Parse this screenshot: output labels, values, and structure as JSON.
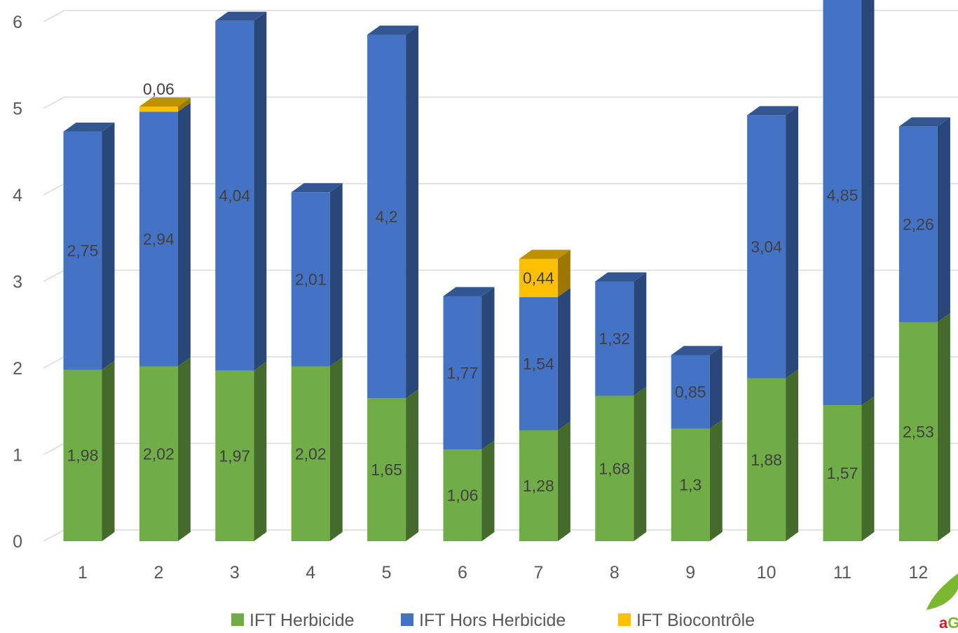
{
  "chart_data": {
    "type": "bar",
    "stacked": true,
    "three_d": true,
    "categories": [
      "1",
      "2",
      "3",
      "4",
      "5",
      "6",
      "7",
      "8",
      "9",
      "10",
      "11",
      "12"
    ],
    "series": [
      {
        "name": "IFT Herbicide",
        "color": "#70AD47",
        "values": [
          1.98,
          2.02,
          1.97,
          2.02,
          1.65,
          1.06,
          1.28,
          1.68,
          1.3,
          1.88,
          1.57,
          2.53
        ],
        "labels": [
          "1,98",
          "2,02",
          "1,97",
          "2,02",
          "1,65",
          "1,06",
          "1,28",
          "1,68",
          "1,3",
          "1,88",
          "1,57",
          "2,53"
        ]
      },
      {
        "name": "IFT Hors Herbicide",
        "color": "#4472C4",
        "values": [
          2.75,
          2.94,
          4.04,
          2.01,
          4.2,
          1.77,
          1.54,
          1.32,
          0.85,
          3.04,
          4.85,
          2.26
        ],
        "labels": [
          "2,75",
          "2,94",
          "4,04",
          "2,01",
          "4,2",
          "1,77",
          "1,54",
          "1,32",
          "0,85",
          "3,04",
          "4,85",
          "2,26"
        ]
      },
      {
        "name": "IFT Biocontrôle",
        "color": "#FFC000",
        "values": [
          0,
          0.06,
          0,
          0,
          0,
          0,
          0.44,
          0,
          0,
          0,
          0,
          0
        ],
        "labels": [
          "",
          "0,06",
          "",
          "",
          "",
          "",
          "0,44",
          "",
          "",
          "",
          "",
          ""
        ]
      }
    ],
    "y_ticks": [
      "0",
      "1",
      "2",
      "3",
      "4",
      "5",
      "6"
    ],
    "ylim": [
      0,
      6
    ],
    "grid": true,
    "legend_position": "bottom"
  },
  "logo": {
    "text_a": "a",
    "text_rest": "GR"
  }
}
